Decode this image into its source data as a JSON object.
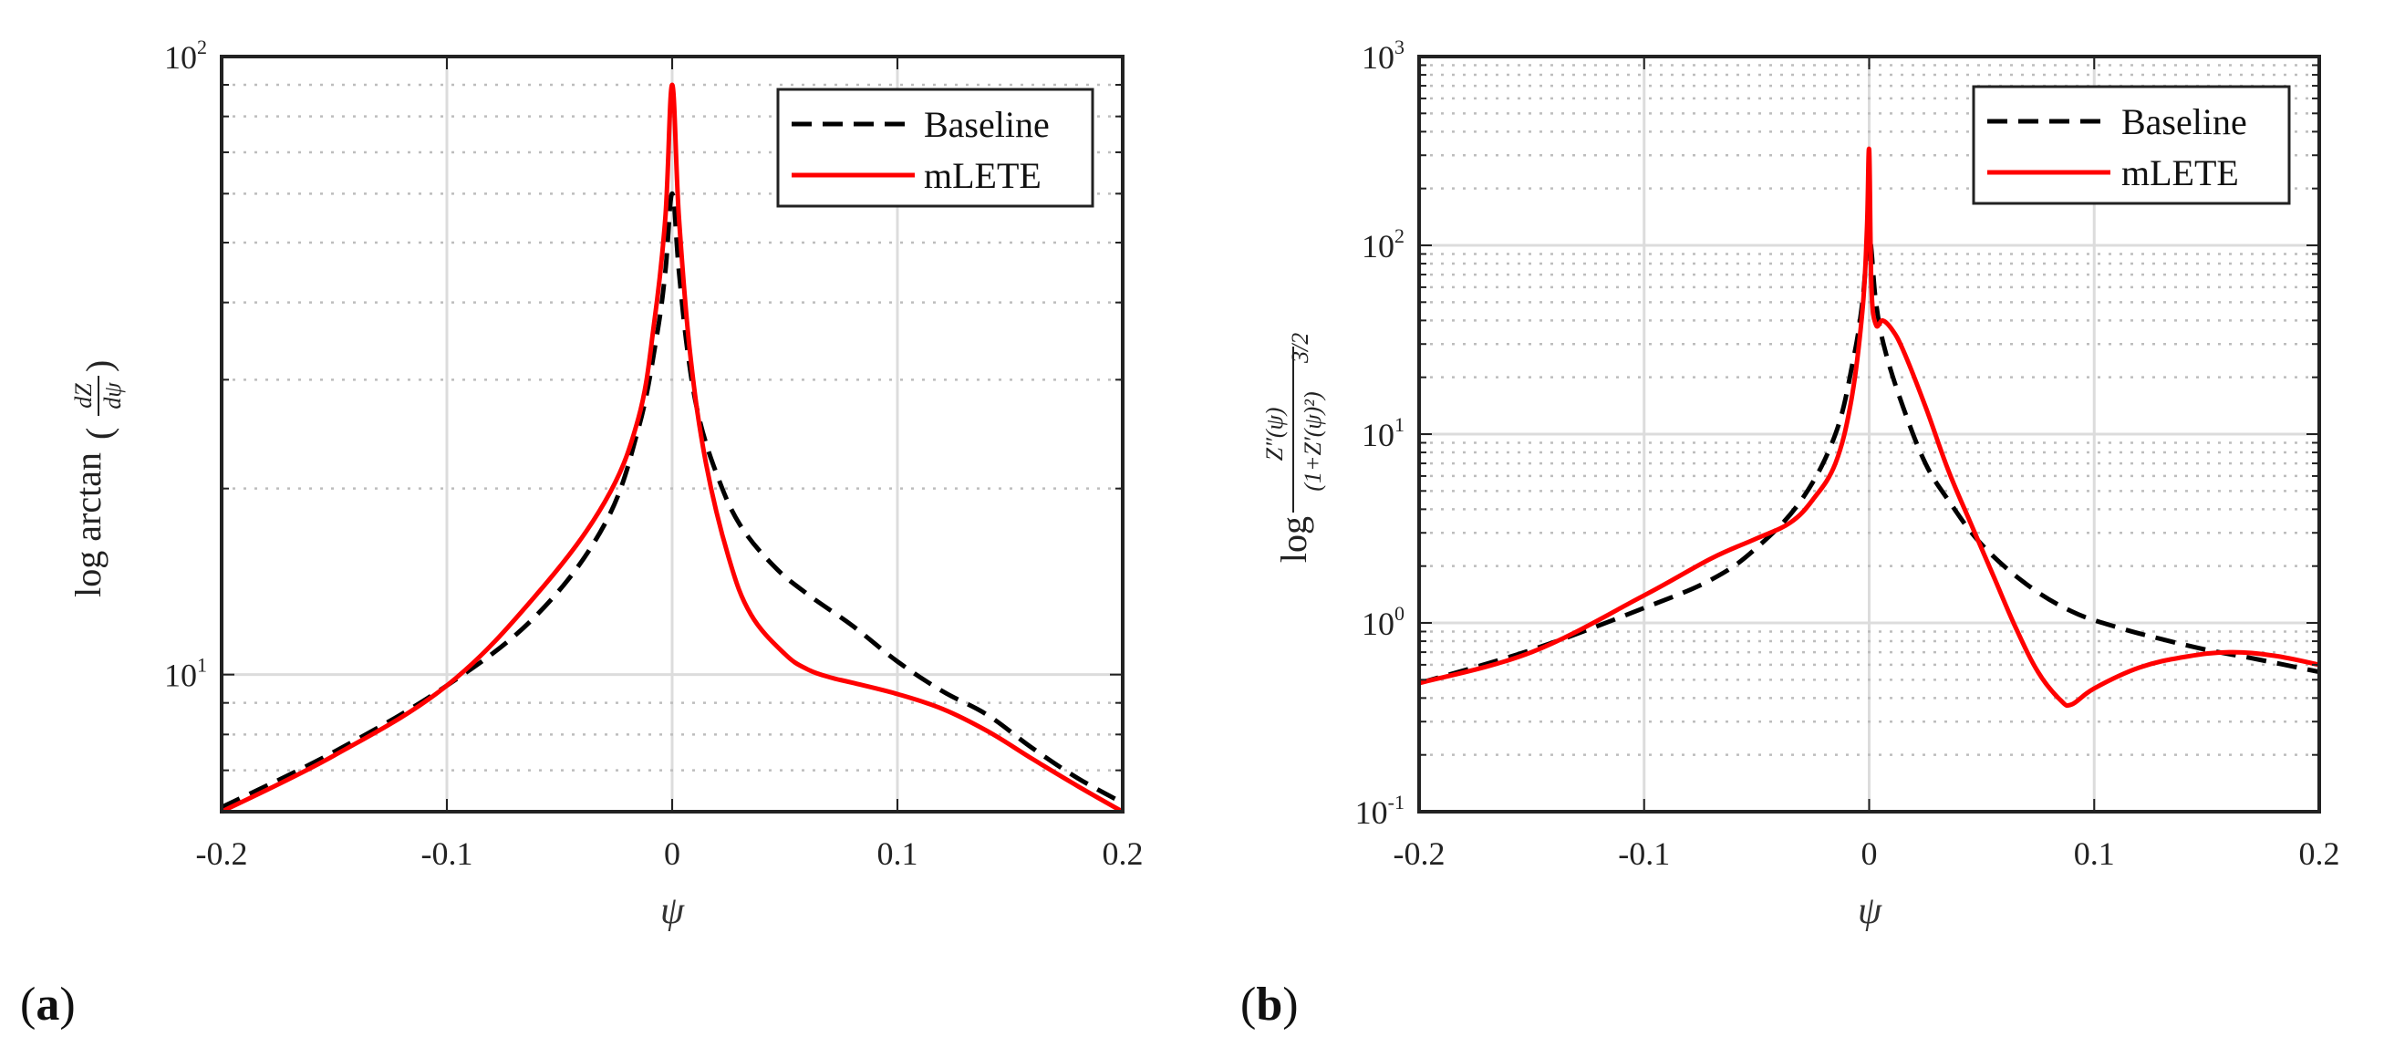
{
  "chart_data": [
    {
      "type": "line",
      "panel_label": "a",
      "xlabel": "ψ",
      "ylabel": {
        "prefix": "log arctan",
        "numerator": "dZ",
        "denominator": "dψ"
      },
      "xlim": [
        -0.2,
        0.2
      ],
      "ylim": [
        6.0,
        100
      ],
      "yscale": "log",
      "grid": true,
      "xticks": [
        -0.2,
        -0.1,
        0,
        0.1,
        0.2
      ],
      "xtick_labels": [
        "-0.2",
        "-0.1",
        "0",
        "0.1",
        "0.2"
      ],
      "yticks": [
        {
          "value": 10,
          "base": "10",
          "exp": "1"
        },
        {
          "value": 100,
          "base": "10",
          "exp": "2"
        }
      ],
      "legend": {
        "location": "top-right",
        "entries": [
          "Baseline",
          "mLETE"
        ]
      },
      "series": [
        {
          "name": "Baseline",
          "color": "#000000",
          "style": "dashed",
          "x": [
            -0.2,
            -0.15,
            -0.1,
            -0.06,
            -0.03,
            -0.015,
            -0.007,
            -0.003,
            0,
            0.003,
            0.007,
            0.012,
            0.02,
            0.03,
            0.045,
            0.06,
            0.08,
            0.1,
            0.12,
            0.14,
            0.16,
            0.18,
            0.2
          ],
          "y": [
            6.1,
            7.5,
            9.6,
            12.5,
            17.5,
            25,
            35,
            45,
            60,
            45,
            33,
            26,
            21,
            17.5,
            15,
            13.5,
            12,
            10.5,
            9.4,
            8.6,
            7.6,
            6.8,
            6.2
          ]
        },
        {
          "name": "mLETE",
          "color": "#ff0000",
          "style": "solid",
          "x": [
            -0.2,
            -0.15,
            -0.1,
            -0.06,
            -0.03,
            -0.015,
            -0.008,
            -0.003,
            0,
            0.003,
            0.008,
            0.015,
            0.025,
            0.035,
            0.05,
            0.06,
            0.07,
            0.08,
            0.1,
            0.12,
            0.14,
            0.16,
            0.18,
            0.2
          ],
          "y": [
            6.0,
            7.4,
            9.6,
            13.5,
            19,
            26,
            37,
            55,
            90,
            55,
            33,
            22,
            15.5,
            12.5,
            10.8,
            10.2,
            9.9,
            9.7,
            9.3,
            8.8,
            8.1,
            7.3,
            6.6,
            6.0
          ]
        }
      ]
    },
    {
      "type": "line",
      "panel_label": "b",
      "xlabel": "ψ",
      "ylabel": {
        "prefix": "log",
        "numerator": "Z″(ψ)",
        "denominator": "(1+Z′(ψ)²)",
        "exponent": "3/2"
      },
      "xlim": [
        -0.2,
        0.2
      ],
      "ylim": [
        0.1,
        1000
      ],
      "yscale": "log",
      "grid": true,
      "xticks": [
        -0.2,
        -0.1,
        0,
        0.1,
        0.2
      ],
      "xtick_labels": [
        "-0.2",
        "-0.1",
        "0",
        "0.1",
        "0.2"
      ],
      "yticks": [
        {
          "value": 0.1,
          "base": "10",
          "exp": "-1"
        },
        {
          "value": 1,
          "base": "10",
          "exp": "0"
        },
        {
          "value": 10,
          "base": "10",
          "exp": "1"
        },
        {
          "value": 100,
          "base": "10",
          "exp": "2"
        },
        {
          "value": 1000,
          "base": "10",
          "exp": "3"
        }
      ],
      "legend": {
        "location": "top-right",
        "entries": [
          "Baseline",
          "mLETE"
        ]
      },
      "series": [
        {
          "name": "Baseline",
          "color": "#000000",
          "style": "dashed",
          "x": [
            -0.2,
            -0.15,
            -0.1,
            -0.07,
            -0.05,
            -0.03,
            -0.015,
            -0.007,
            -0.003,
            0,
            0.003,
            0.007,
            0.015,
            0.025,
            0.035,
            0.05,
            0.07,
            0.09,
            0.11,
            0.13,
            0.15,
            0.17,
            0.2
          ],
          "y": [
            0.48,
            0.72,
            1.2,
            1.7,
            2.5,
            4.5,
            10,
            25,
            50,
            110,
            50,
            28,
            14,
            7,
            4.5,
            2.6,
            1.6,
            1.15,
            0.95,
            0.82,
            0.72,
            0.65,
            0.55
          ]
        },
        {
          "name": "mLETE",
          "color": "#ff0000",
          "style": "solid",
          "x": [
            -0.2,
            -0.15,
            -0.1,
            -0.07,
            -0.05,
            -0.035,
            -0.025,
            -0.015,
            -0.008,
            -0.003,
            -0.001,
            0,
            0.001,
            0.003,
            0.006,
            0.01,
            0.015,
            0.025,
            0.035,
            0.045,
            0.055,
            0.065,
            0.075,
            0.085,
            0.09,
            0.1,
            0.12,
            0.14,
            0.16,
            0.18,
            0.2
          ],
          "y": [
            0.48,
            0.7,
            1.4,
            2.2,
            2.8,
            3.4,
            4.5,
            7,
            15,
            45,
            120,
            320,
            60,
            38,
            40,
            36,
            28,
            14,
            6.5,
            3.4,
            1.8,
            0.95,
            0.55,
            0.39,
            0.37,
            0.45,
            0.58,
            0.66,
            0.7,
            0.67,
            0.6
          ]
        }
      ]
    }
  ]
}
